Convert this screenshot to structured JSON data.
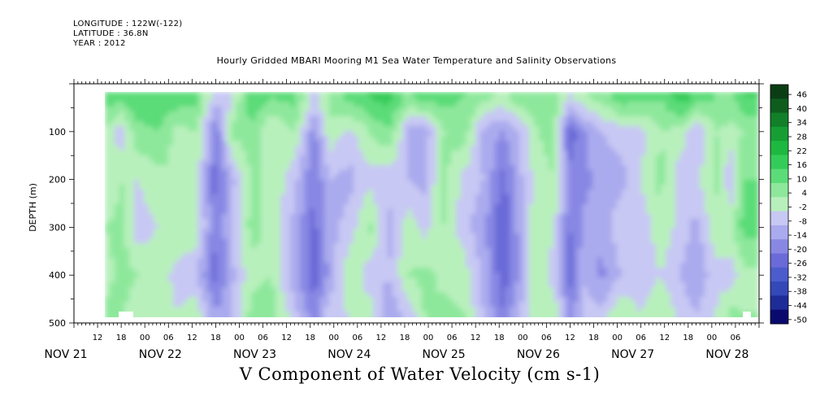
{
  "header": {
    "longitude": "LONGITUDE : 122W(-122)",
    "latitude": "LATITUDE : 36.8N",
    "year": "YEAR : 2012",
    "plot_title": "Hourly Gridded MBARI Mooring M1 Sea Water Temperature and Salinity Observations",
    "bottom_title": "V Component of Water Velocity (cm s-1)"
  },
  "chart_data": {
    "type": "heatmap",
    "title": "Hourly Gridded MBARI Mooring M1 Sea Water Temperature and Salinity Observations",
    "variable": "V Component of Water Velocity (cm s-1)",
    "ylabel": "DEPTH (m)",
    "ylim": [
      500,
      0
    ],
    "y_ticks": [
      "100",
      "200",
      "300",
      "400",
      "500"
    ],
    "x_hour_ticks": [
      "12",
      "18",
      "00",
      "06",
      "12",
      "18",
      "00",
      "06",
      "12",
      "18",
      "00",
      "06",
      "12",
      "18",
      "00",
      "06",
      "12",
      "18",
      "00",
      "06",
      "12",
      "18",
      "00",
      "06",
      "12",
      "18",
      "00",
      "06"
    ],
    "x_day_labels": [
      "NOV 21",
      "NOV 22",
      "NOV 23",
      "NOV 24",
      "NOV 25",
      "NOV 26",
      "NOV 27",
      "NOV 28"
    ],
    "colorbar_levels": [
      "46",
      "40",
      "34",
      "28",
      "22",
      "16",
      "10",
      "4",
      "-2",
      "-8",
      "-14",
      "-20",
      "-26",
      "-32",
      "-38",
      "-44",
      "-50"
    ],
    "colorbar_colors": [
      "#0a3d14",
      "#0e5c1e",
      "#128028",
      "#169e34",
      "#1eb840",
      "#34cc58",
      "#5cdc78",
      "#8ee89c",
      "#b8f0bc",
      "#c8c8f4",
      "#aaaaee",
      "#8888e4",
      "#6a6ad8",
      "#4c5ccc",
      "#3448b8",
      "#1e2c98",
      "#0a0a6e"
    ],
    "time_profiles": [
      {
        "t": "Nov 21 06:00",
        "v": [
          5,
          4,
          3,
          2,
          1,
          0
        ]
      },
      {
        "t": "Nov 21 13:00",
        "v": [
          14,
          4,
          -4,
          4,
          -2,
          6
        ]
      },
      {
        "t": "Nov 21 18:00",
        "v": [
          12,
          -6,
          4,
          6,
          8,
          6
        ]
      },
      {
        "t": "Nov 21 22:00",
        "v": [
          14,
          8,
          -2,
          -6,
          4,
          -2
        ]
      },
      {
        "t": "Nov 22 03:00",
        "v": [
          16,
          10,
          2,
          -2,
          2,
          4
        ]
      },
      {
        "t": "Nov 22 08:00",
        "v": [
          14,
          2,
          4,
          4,
          -4,
          -2
        ]
      },
      {
        "t": "Nov 22 13:00",
        "v": [
          12,
          4,
          2,
          2,
          -8,
          2
        ]
      },
      {
        "t": "Nov 22 18:00",
        "v": [
          -6,
          -20,
          -22,
          -20,
          -22,
          -14
        ]
      },
      {
        "t": "Nov 22 22:00",
        "v": [
          -4,
          6,
          -10,
          -8,
          -10,
          -8
        ]
      },
      {
        "t": "Nov 23 03:00",
        "v": [
          16,
          8,
          4,
          6,
          2,
          6
        ]
      },
      {
        "t": "Nov 23 08:00",
        "v": [
          10,
          -2,
          4,
          2,
          4,
          8
        ]
      },
      {
        "t": "Nov 23 14:00",
        "v": [
          12,
          4,
          -6,
          -10,
          -12,
          -6
        ]
      },
      {
        "t": "Nov 23 19:00",
        "v": [
          -4,
          -16,
          -20,
          -22,
          -24,
          -18
        ]
      },
      {
        "t": "Nov 23 23:00",
        "v": [
          6,
          2,
          -8,
          -10,
          -12,
          -4
        ]
      },
      {
        "t": "Nov 24 04:00",
        "v": [
          12,
          -4,
          -10,
          -6,
          4,
          -2
        ]
      },
      {
        "t": "Nov 24 09:00",
        "v": [
          16,
          4,
          -4,
          6,
          -6,
          2
        ]
      },
      {
        "t": "Nov 24 14:00",
        "v": [
          18,
          10,
          -6,
          -10,
          -8,
          -12
        ]
      },
      {
        "t": "Nov 24 19:00",
        "v": [
          8,
          -10,
          -8,
          2,
          4,
          -6
        ]
      },
      {
        "t": "Nov 24 23:00",
        "v": [
          14,
          -12,
          -10,
          -4,
          6,
          4
        ]
      },
      {
        "t": "Nov 25 04:00",
        "v": [
          12,
          4,
          6,
          4,
          2,
          6
        ]
      },
      {
        "t": "Nov 25 09:00",
        "v": [
          10,
          8,
          -4,
          -6,
          2,
          4
        ]
      },
      {
        "t": "Nov 25 14:00",
        "v": [
          6,
          -10,
          -8,
          -12,
          -10,
          -8
        ]
      },
      {
        "t": "Nov 25 19:00",
        "v": [
          2,
          -14,
          -22,
          -26,
          -24,
          -20
        ]
      },
      {
        "t": "Nov 25 23:00",
        "v": [
          8,
          -8,
          -10,
          -12,
          -14,
          -8
        ]
      },
      {
        "t": "Nov 26 04:00",
        "v": [
          10,
          4,
          2,
          4,
          6,
          4
        ]
      },
      {
        "t": "Nov 26 08:00",
        "v": [
          6,
          6,
          4,
          -2,
          -6,
          2
        ]
      },
      {
        "t": "Nov 26 12:00",
        "v": [
          -4,
          -24,
          -18,
          -20,
          -22,
          -16
        ]
      },
      {
        "t": "Nov 26 16:00",
        "v": [
          4,
          -14,
          -16,
          -12,
          -8,
          -6
        ]
      },
      {
        "t": "Nov 26 20:00",
        "v": [
          6,
          -8,
          -10,
          -12,
          -16,
          -6
        ]
      },
      {
        "t": "Nov 27 01:00",
        "v": [
          14,
          -6,
          -10,
          -4,
          -8,
          4
        ]
      },
      {
        "t": "Nov 27 06:00",
        "v": [
          12,
          -4,
          -2,
          -6,
          -8,
          -2
        ]
      },
      {
        "t": "Nov 27 11:00",
        "v": [
          10,
          4,
          6,
          2,
          -2,
          4
        ]
      },
      {
        "t": "Nov 27 16:00",
        "v": [
          20,
          2,
          -6,
          -4,
          -8,
          -4
        ]
      },
      {
        "t": "Nov 27 20:00",
        "v": [
          14,
          -8,
          -4,
          -10,
          -14,
          -8
        ]
      },
      {
        "t": "Nov 28 01:00",
        "v": [
          10,
          4,
          6,
          2,
          -4,
          -2
        ]
      },
      {
        "t": "Nov 28 05:00",
        "v": [
          8,
          2,
          -8,
          4,
          -6,
          6
        ]
      },
      {
        "t": "Nov 28 08:00",
        "v": [
          16,
          4,
          10,
          12,
          2,
          4
        ]
      }
    ],
    "profile_depths": [
      30,
      100,
      200,
      300,
      400,
      480
    ]
  }
}
